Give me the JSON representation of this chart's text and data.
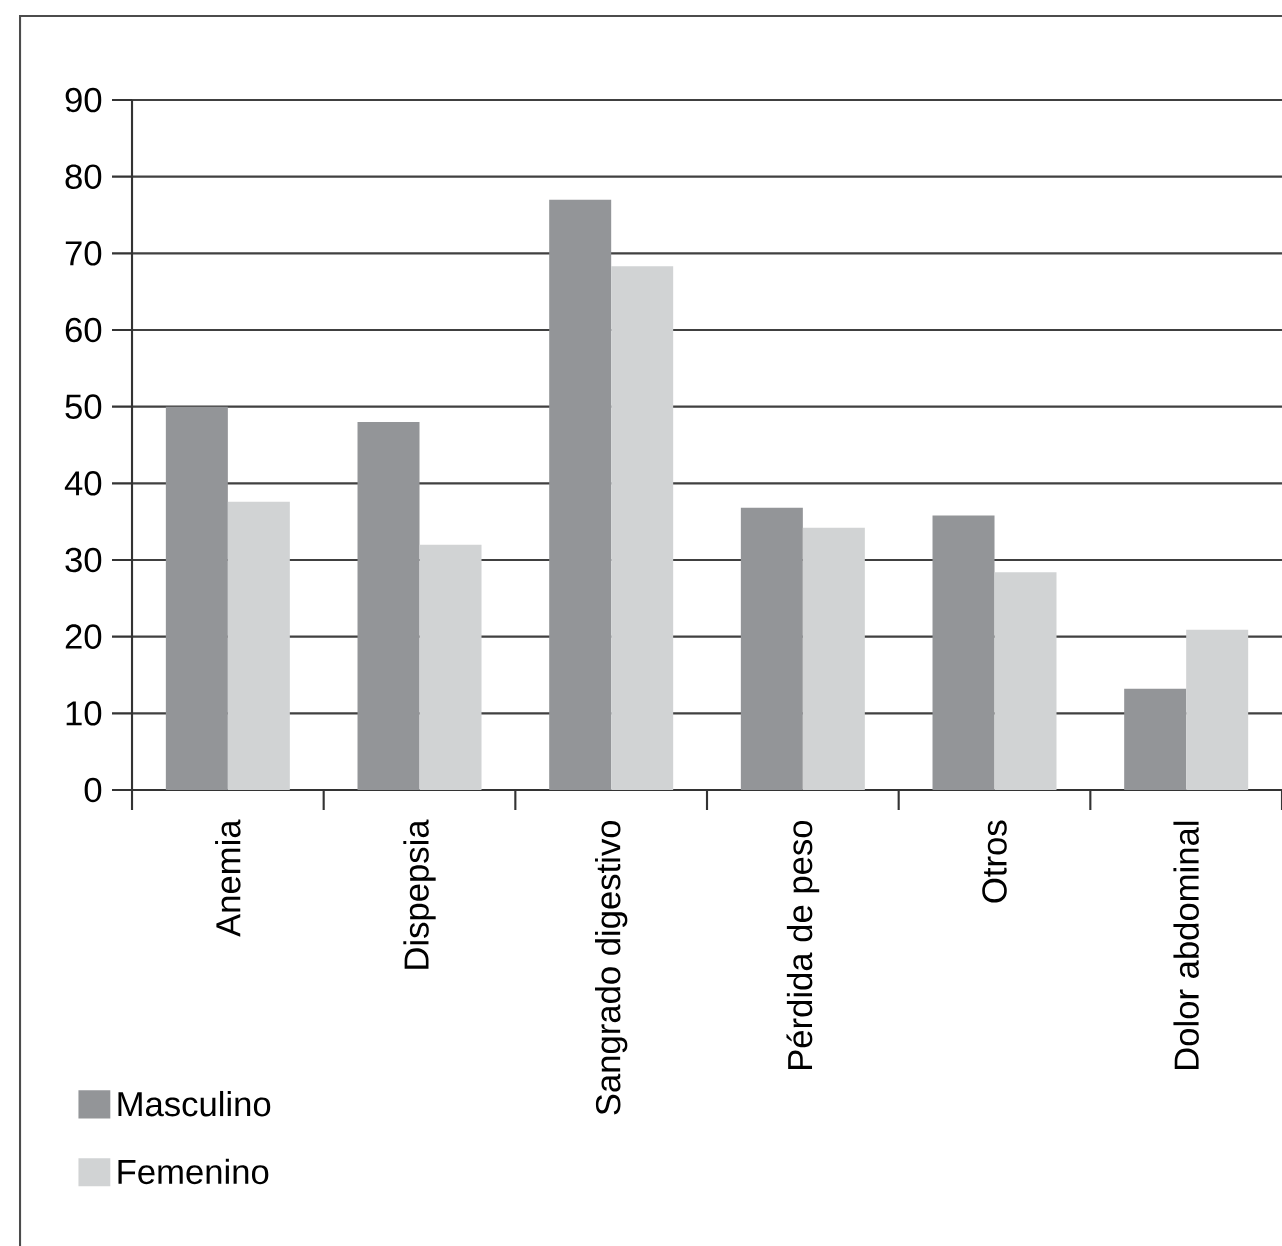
{
  "chart_data": {
    "type": "bar",
    "categories": [
      "Anemia",
      "Dispepsia",
      "Sangrado digestivo",
      "Pérdida de peso",
      "Otros",
      "Dolor abdominal"
    ],
    "series": [
      {
        "name": "Masculino",
        "color": "#939598",
        "values": [
          50,
          48,
          77,
          36.8,
          35.8,
          13.2
        ]
      },
      {
        "name": "Femenino",
        "color": "#d1d3d4",
        "values": [
          37.6,
          32,
          68.3,
          34.2,
          28.4,
          20.9
        ]
      }
    ],
    "ylim": [
      0,
      90
    ],
    "yticks": [
      0,
      10,
      20,
      30,
      40,
      50,
      60,
      70,
      80,
      90
    ],
    "grid": "y",
    "legend": "bottom left"
  }
}
